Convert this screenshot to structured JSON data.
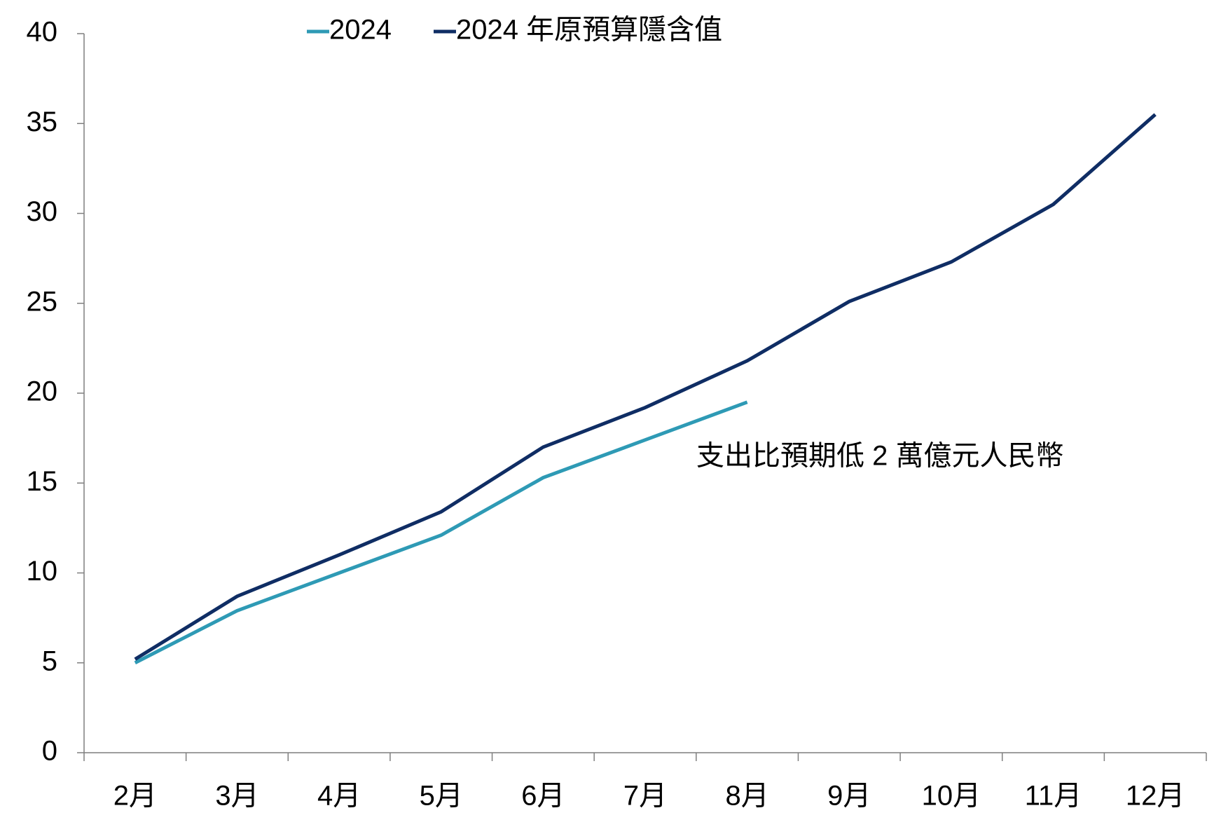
{
  "chart_data": {
    "type": "line",
    "categories": [
      "2月",
      "3月",
      "4月",
      "5月",
      "6月",
      "7月",
      "8月",
      "9月",
      "10月",
      "11月",
      "12月"
    ],
    "series": [
      {
        "name": "2024",
        "color": "#2e9ab5",
        "values": [
          5.0,
          7.9,
          10.0,
          12.1,
          15.3,
          17.4,
          19.5,
          null,
          null,
          null,
          null
        ]
      },
      {
        "name": "2024 年原預算隱含值",
        "color": "#0f2d64",
        "values": [
          5.2,
          8.7,
          11.0,
          13.4,
          17.0,
          19.2,
          21.8,
          25.1,
          27.3,
          30.5,
          35.5
        ]
      }
    ],
    "annotation": "支出比預期低 2 萬億元人民幣",
    "ylim": [
      0,
      40
    ],
    "yticks": [
      0,
      5,
      10,
      15,
      20,
      25,
      30,
      35,
      40
    ],
    "grid": false,
    "legend": "top"
  }
}
